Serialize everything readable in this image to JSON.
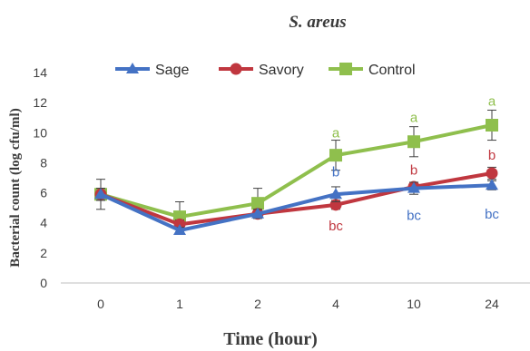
{
  "chart_data": {
    "type": "line",
    "title": "S. areus",
    "xlabel": "Time (hour)",
    "ylabel": "Bacterial count (log cfu/ml)",
    "categories": [
      "0",
      "1",
      "2",
      "4",
      "10",
      "24"
    ],
    "ylim": [
      0,
      14
    ],
    "yticks": [
      "0",
      "2",
      "4",
      "6",
      "8",
      "10",
      "12",
      "14"
    ],
    "grid": false,
    "legend_position": "top-left",
    "series": [
      {
        "name": "Sage",
        "color": "#4472c4",
        "marker": "triangle",
        "values": [
          5.9,
          3.5,
          4.6,
          5.9,
          6.3,
          6.5
        ],
        "errors": [
          0.4,
          0.2,
          0.3,
          0.5,
          0.4,
          0.3
        ]
      },
      {
        "name": "Savory",
        "color": "#c0373f",
        "marker": "circle",
        "values": [
          5.9,
          3.9,
          4.6,
          5.2,
          6.4,
          7.3
        ],
        "errors": [
          0.4,
          0.3,
          0.3,
          0.3,
          0.3,
          0.4
        ]
      },
      {
        "name": "Control",
        "color": "#8fbf4d",
        "marker": "square",
        "values": [
          5.9,
          4.4,
          5.3,
          8.5,
          9.4,
          10.5
        ],
        "errors": [
          1.0,
          1.0,
          1.0,
          1.0,
          1.0,
          1.0
        ]
      }
    ],
    "annotations": [
      {
        "text": "a",
        "category": "4",
        "y": 10.0,
        "color": "#8fbf4d"
      },
      {
        "text": "a",
        "category": "10",
        "y": 11.0,
        "color": "#8fbf4d"
      },
      {
        "text": "a",
        "category": "24",
        "y": 12.1,
        "color": "#8fbf4d"
      },
      {
        "text": "b",
        "category": "4",
        "y": 7.4,
        "color": "#4472c4"
      },
      {
        "text": "b",
        "category": "10",
        "y": 7.5,
        "color": "#c0373f"
      },
      {
        "text": "b",
        "category": "24",
        "y": 8.5,
        "color": "#c0373f"
      },
      {
        "text": "bc",
        "category": "4",
        "y": 3.8,
        "color": "#c0373f"
      },
      {
        "text": "bc",
        "category": "10",
        "y": 4.5,
        "color": "#4472c4"
      },
      {
        "text": "bc",
        "category": "24",
        "y": 4.6,
        "color": "#4472c4"
      }
    ]
  }
}
